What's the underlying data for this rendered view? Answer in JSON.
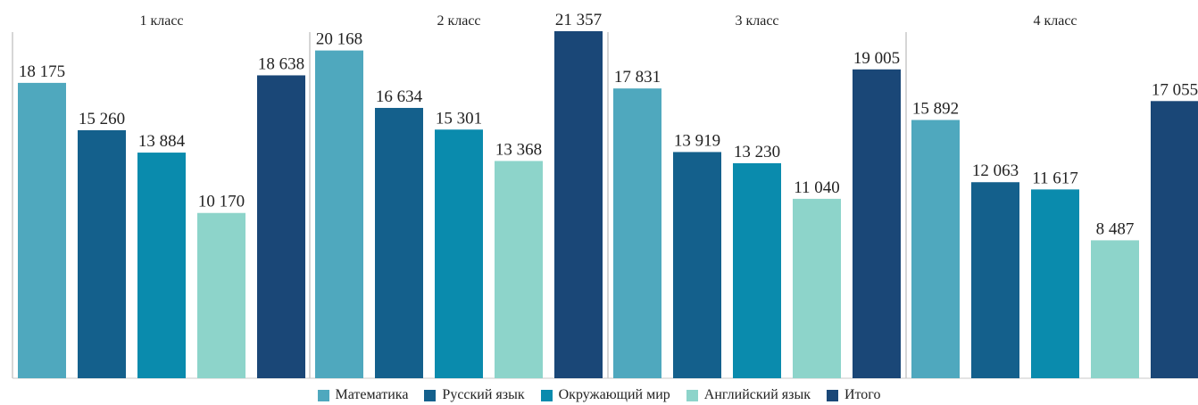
{
  "chart_data": {
    "type": "bar",
    "groups": [
      "1 класс",
      "2 класс",
      "3 класс",
      "4 класс"
    ],
    "series": [
      {
        "name": "Математика",
        "color": "#4fa8be",
        "values": [
          18175,
          20168,
          17831,
          15892
        ],
        "labels": [
          "18 175",
          "20 168",
          "17 831",
          "15 892"
        ]
      },
      {
        "name": "Русский язык",
        "color": "#14608c",
        "values": [
          15260,
          16634,
          13919,
          12063
        ],
        "labels": [
          "15 260",
          "16 634",
          "13 919",
          "12 063"
        ]
      },
      {
        "name": "Окружающий мир",
        "color": "#0a8bad",
        "values": [
          13884,
          15301,
          13230,
          11617
        ],
        "labels": [
          "13 884",
          "15 301",
          "13 230",
          "11 617"
        ]
      },
      {
        "name": "Английский язык",
        "color": "#8dd4ca",
        "values": [
          10170,
          13368,
          11040,
          8487
        ],
        "labels": [
          "10 170",
          "13 368",
          "11 040",
          "8 487"
        ]
      },
      {
        "name": "Итого",
        "color": "#1a4777",
        "values": [
          18638,
          21357,
          19005,
          17055
        ],
        "labels": [
          "18 638",
          "21 357",
          "19 005",
          "17 055"
        ]
      }
    ],
    "ylim": [
      0,
      23000
    ],
    "legend_position": "bottom",
    "grid": false
  }
}
